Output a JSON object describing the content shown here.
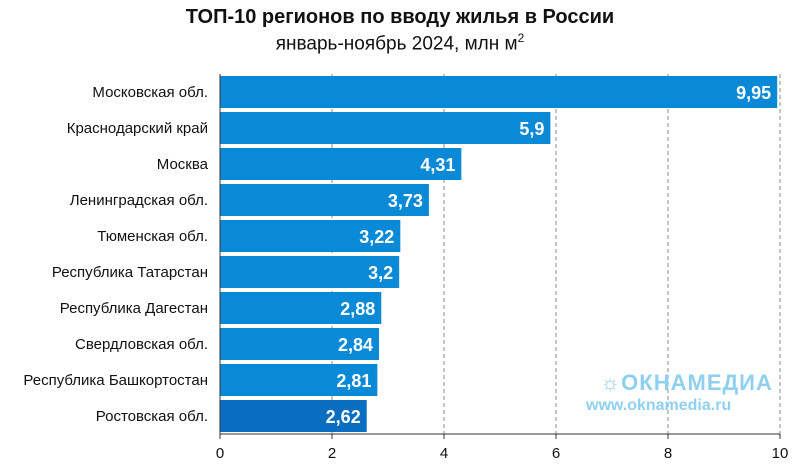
{
  "chart_data": {
    "type": "bar",
    "orientation": "horizontal",
    "title": "ТОП-10 регионов по вводу жилья в России",
    "subtitle": "январь-ноябрь 2024, млн м",
    "subtitle_superscript": "2",
    "categories": [
      "Московская обл.",
      "Краснодарский край",
      "Москва",
      "Ленинградская обл.",
      "Тюменская обл.",
      "Республика Татарстан",
      "Республика Дагестан",
      "Свердловская обл.",
      "Республика Башкортостан",
      "Ростовская обл."
    ],
    "values": [
      9.95,
      5.9,
      4.31,
      3.73,
      3.22,
      3.2,
      2.88,
      2.84,
      2.81,
      2.62
    ],
    "value_labels": [
      "9,95",
      "5,9",
      "4,31",
      "3,73",
      "3,22",
      "3,2",
      "2,88",
      "2,84",
      "2,81",
      "2,62"
    ],
    "xlim": [
      0,
      10
    ],
    "xticks": [
      0,
      2,
      4,
      6,
      8,
      10
    ],
    "grid": true,
    "bar_color": "#0a8ad6",
    "highlight_bar_color": "#0a6ec0",
    "highlight_index": 9
  },
  "watermark": {
    "logo_icon": "sun-icon",
    "logo_text": "ОКНАМЕДИА",
    "url": "www.oknamedia.ru",
    "color": "#8fd0f2"
  }
}
